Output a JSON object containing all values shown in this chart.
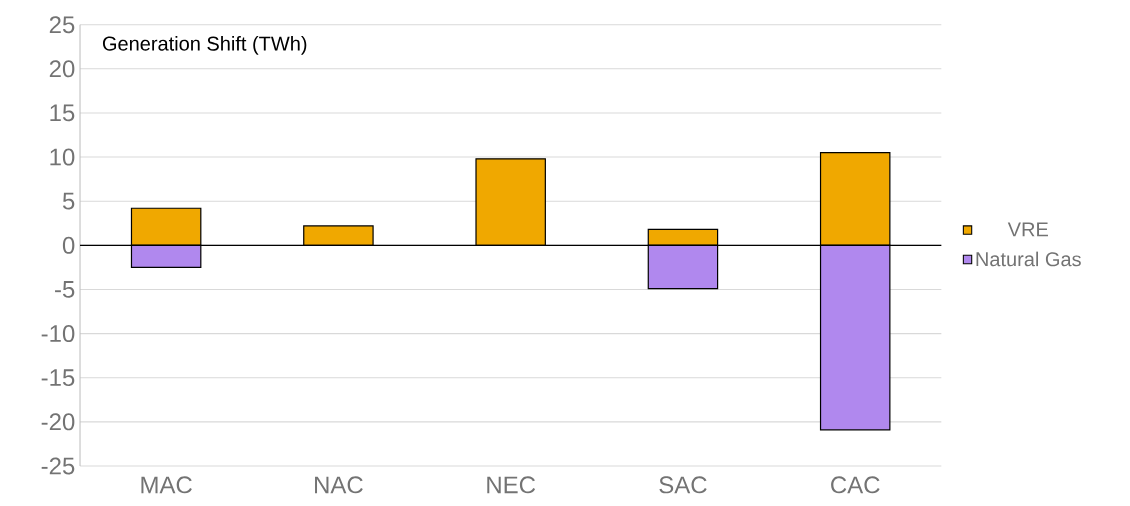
{
  "chart_data": {
    "type": "bar",
    "title": "Generation Shift (TWh)",
    "stacked": true,
    "categories": [
      "MAC",
      "NAC",
      "NEC",
      "SAC",
      "CAC"
    ],
    "series": [
      {
        "name": "VRE",
        "color": "#f0a800",
        "values": [
          4.2,
          2.2,
          9.8,
          1.8,
          10.5
        ]
      },
      {
        "name": "Natural Gas",
        "color": "#b088ee",
        "values": [
          -2.5,
          null,
          null,
          -4.9,
          -20.9
        ]
      }
    ],
    "ylim": [
      -25,
      25
    ],
    "yticks": [
      -25,
      -20,
      -15,
      -10,
      -5,
      0,
      5,
      10,
      15,
      20,
      25
    ],
    "grid": "y",
    "legend": "right"
  }
}
